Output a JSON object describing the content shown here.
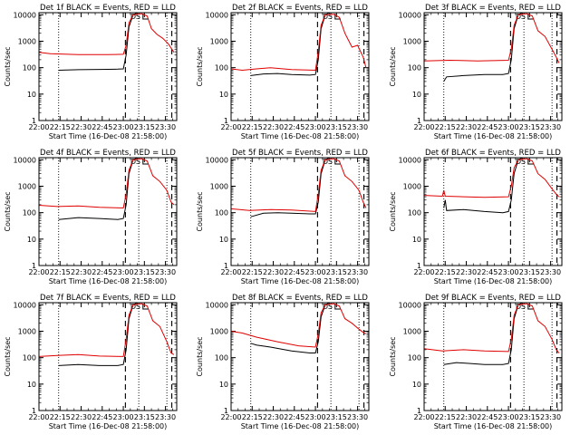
{
  "common": {
    "title_suffix": "BLACK = Events, RED = LLD",
    "ylabel": "Counts/sec",
    "xlabel": "Start Time (16-Dec-08 21:58:00)",
    "y_scale": "log",
    "ylim": [
      1,
      12000
    ],
    "y_ticks": [
      1,
      10,
      100,
      1000,
      10000
    ],
    "y_tick_labels": [
      "1",
      "10",
      "100",
      "1000",
      "10000"
    ],
    "x_unit": "minutes after 21:58:00",
    "xlim": [
      2,
      100
    ],
    "x_ticks": [
      2,
      17,
      32,
      47,
      62,
      77,
      92
    ],
    "x_tick_labels": [
      "22:00",
      "22:15",
      "22:30",
      "22:45",
      "23:00",
      "23:15",
      "23:30"
    ],
    "dotted_markers": [
      16,
      73,
      93
    ],
    "dashed_markers": [
      63.5,
      96.5
    ],
    "top_markers": [
      "D",
      "S"
    ],
    "colors": {
      "events": "#000000",
      "lld": "#e00000",
      "axis": "#000000"
    }
  },
  "chart_data": [
    {
      "type": "line",
      "title": "Det 1f",
      "series": [
        {
          "name": "Events",
          "points": [
            [
              16,
              80
            ],
            [
              30,
              84
            ],
            [
              45,
              86
            ],
            [
              58,
              88
            ],
            [
              62,
              90
            ],
            [
              64,
              300
            ],
            [
              66,
              3500
            ],
            [
              69,
              10000
            ],
            [
              72,
              12000
            ]
          ]
        },
        {
          "name": "LLD",
          "points": [
            [
              2,
              380
            ],
            [
              10,
              340
            ],
            [
              30,
              310
            ],
            [
              50,
              310
            ],
            [
              62,
              320
            ],
            [
              64,
              700
            ],
            [
              66,
              5000
            ],
            [
              69,
              10000
            ],
            [
              75,
              11000
            ],
            [
              79,
              9000
            ],
            [
              82,
              3000
            ],
            [
              86,
              1800
            ],
            [
              90,
              1300
            ],
            [
              94,
              800
            ],
            [
              98,
              380
            ]
          ]
        }
      ]
    },
    {
      "type": "line",
      "title": "Det 2f",
      "series": [
        {
          "name": "Events",
          "points": [
            [
              16,
              50
            ],
            [
              25,
              58
            ],
            [
              35,
              60
            ],
            [
              45,
              55
            ],
            [
              58,
              52
            ],
            [
              62,
              55
            ],
            [
              64,
              200
            ],
            [
              66,
              3000
            ],
            [
              69,
              10000
            ],
            [
              72,
              12000
            ]
          ]
        },
        {
          "name": "LLD",
          "points": [
            [
              2,
              90
            ],
            [
              10,
              80
            ],
            [
              20,
              90
            ],
            [
              30,
              100
            ],
            [
              45,
              85
            ],
            [
              62,
              80
            ],
            [
              64,
              400
            ],
            [
              66,
              4000
            ],
            [
              69,
              10000
            ],
            [
              75,
              10500
            ],
            [
              79,
              8000
            ],
            [
              83,
              2000
            ],
            [
              88,
              600
            ],
            [
              92,
              700
            ],
            [
              96,
              250
            ],
            [
              98,
              100
            ]
          ]
        }
      ]
    },
    {
      "type": "line",
      "title": "Det 3f",
      "series": [
        {
          "name": "Events",
          "points": [
            [
              16,
              30
            ],
            [
              18,
              45
            ],
            [
              30,
              50
            ],
            [
              45,
              55
            ],
            [
              58,
              55
            ],
            [
              62,
              60
            ],
            [
              64,
              200
            ],
            [
              66,
              3000
            ],
            [
              69,
              10000
            ],
            [
              72,
              12000
            ]
          ]
        },
        {
          "name": "LLD",
          "points": [
            [
              2,
              180
            ],
            [
              20,
              190
            ],
            [
              40,
              180
            ],
            [
              62,
              190
            ],
            [
              64,
              500
            ],
            [
              66,
              4000
            ],
            [
              69,
              10000
            ],
            [
              75,
              11000
            ],
            [
              79,
              9000
            ],
            [
              83,
              2500
            ],
            [
              88,
              1500
            ],
            [
              93,
              500
            ],
            [
              96,
              250
            ],
            [
              98,
              150
            ]
          ]
        }
      ]
    },
    {
      "type": "line",
      "title": "Det 4f",
      "series": [
        {
          "name": "Events",
          "points": [
            [
              16,
              55
            ],
            [
              30,
              65
            ],
            [
              45,
              60
            ],
            [
              58,
              55
            ],
            [
              62,
              60
            ],
            [
              64,
              200
            ],
            [
              66,
              3000
            ],
            [
              69,
              10000
            ],
            [
              72,
              12000
            ]
          ]
        },
        {
          "name": "LLD",
          "points": [
            [
              2,
              190
            ],
            [
              15,
              170
            ],
            [
              30,
              180
            ],
            [
              45,
              160
            ],
            [
              62,
              150
            ],
            [
              64,
              500
            ],
            [
              66,
              4000
            ],
            [
              69,
              10000
            ],
            [
              75,
              11000
            ],
            [
              79,
              9000
            ],
            [
              83,
              2500
            ],
            [
              88,
              1500
            ],
            [
              93,
              700
            ],
            [
              96,
              250
            ],
            [
              98,
              200
            ]
          ]
        }
      ]
    },
    {
      "type": "line",
      "title": "Det 5f",
      "series": [
        {
          "name": "Events",
          "points": [
            [
              16,
              70
            ],
            [
              25,
              95
            ],
            [
              35,
              100
            ],
            [
              45,
              95
            ],
            [
              58,
              90
            ],
            [
              62,
              90
            ],
            [
              64,
              250
            ],
            [
              66,
              3000
            ],
            [
              69,
              10000
            ],
            [
              72,
              12000
            ]
          ]
        },
        {
          "name": "LLD",
          "points": [
            [
              2,
              140
            ],
            [
              15,
              120
            ],
            [
              30,
              130
            ],
            [
              45,
              125
            ],
            [
              62,
              110
            ],
            [
              64,
              500
            ],
            [
              66,
              4000
            ],
            [
              69,
              10000
            ],
            [
              75,
              11000
            ],
            [
              79,
              9000
            ],
            [
              83,
              2500
            ],
            [
              88,
              1500
            ],
            [
              93,
              700
            ],
            [
              96,
              250
            ],
            [
              98,
              150
            ]
          ]
        }
      ]
    },
    {
      "type": "line",
      "title": "Det 6f",
      "series": [
        {
          "name": "Events",
          "points": [
            [
              16,
              150
            ],
            [
              17,
              300
            ],
            [
              18,
              120
            ],
            [
              30,
              130
            ],
            [
              45,
              110
            ],
            [
              58,
              100
            ],
            [
              62,
              110
            ],
            [
              64,
              300
            ],
            [
              66,
              3000
            ],
            [
              69,
              10000
            ],
            [
              72,
              12000
            ]
          ]
        },
        {
          "name": "LLD",
          "points": [
            [
              2,
              450
            ],
            [
              15,
              420
            ],
            [
              16,
              700
            ],
            [
              17,
              420
            ],
            [
              30,
              400
            ],
            [
              45,
              380
            ],
            [
              62,
              400
            ],
            [
              64,
              1000
            ],
            [
              66,
              5000
            ],
            [
              69,
              10000
            ],
            [
              75,
              11000
            ],
            [
              79,
              9000
            ],
            [
              83,
              3000
            ],
            [
              88,
              1800
            ],
            [
              93,
              800
            ],
            [
              96,
              500
            ],
            [
              98,
              400
            ]
          ]
        }
      ]
    },
    {
      "type": "line",
      "title": "Det 7f",
      "series": [
        {
          "name": "Events",
          "points": [
            [
              16,
              50
            ],
            [
              30,
              55
            ],
            [
              45,
              50
            ],
            [
              58,
              50
            ],
            [
              62,
              55
            ],
            [
              64,
              200
            ],
            [
              66,
              3000
            ],
            [
              69,
              10000
            ],
            [
              72,
              12000
            ]
          ]
        },
        {
          "name": "LLD",
          "points": [
            [
              2,
              110
            ],
            [
              15,
              120
            ],
            [
              30,
              130
            ],
            [
              45,
              115
            ],
            [
              62,
              110
            ],
            [
              64,
              500
            ],
            [
              66,
              4000
            ],
            [
              69,
              10000
            ],
            [
              75,
              11000
            ],
            [
              79,
              9000
            ],
            [
              83,
              2500
            ],
            [
              88,
              1500
            ],
            [
              93,
              400
            ],
            [
              96,
              150
            ],
            [
              98,
              130
            ]
          ]
        }
      ]
    },
    {
      "type": "line",
      "title": "Det 8f",
      "series": [
        {
          "name": "Events",
          "points": [
            [
              16,
              350
            ],
            [
              20,
              300
            ],
            [
              30,
              250
            ],
            [
              45,
              180
            ],
            [
              58,
              150
            ],
            [
              62,
              150
            ],
            [
              64,
              400
            ],
            [
              66,
              3500
            ],
            [
              69,
              10000
            ],
            [
              72,
              12000
            ]
          ]
        },
        {
          "name": "LLD",
          "points": [
            [
              2,
              1000
            ],
            [
              10,
              850
            ],
            [
              20,
              600
            ],
            [
              35,
              400
            ],
            [
              50,
              280
            ],
            [
              62,
              250
            ],
            [
              64,
              800
            ],
            [
              66,
              5000
            ],
            [
              69,
              10000
            ],
            [
              75,
              11000
            ],
            [
              79,
              9000
            ],
            [
              83,
              3000
            ],
            [
              88,
              2000
            ],
            [
              93,
              1200
            ],
            [
              96,
              900
            ],
            [
              98,
              800
            ]
          ]
        }
      ]
    },
    {
      "type": "line",
      "title": "Det 9f",
      "series": [
        {
          "name": "Events",
          "points": [
            [
              16,
              55
            ],
            [
              25,
              65
            ],
            [
              35,
              60
            ],
            [
              45,
              55
            ],
            [
              58,
              55
            ],
            [
              62,
              60
            ],
            [
              64,
              200
            ],
            [
              66,
              3000
            ],
            [
              69,
              10000
            ],
            [
              72,
              12000
            ]
          ]
        },
        {
          "name": "LLD",
          "points": [
            [
              2,
              220
            ],
            [
              15,
              180
            ],
            [
              30,
              200
            ],
            [
              45,
              180
            ],
            [
              62,
              170
            ],
            [
              64,
              500
            ],
            [
              66,
              4000
            ],
            [
              69,
              10000
            ],
            [
              75,
              11000
            ],
            [
              79,
              9000
            ],
            [
              83,
              2500
            ],
            [
              88,
              1500
            ],
            [
              93,
              500
            ],
            [
              96,
              200
            ],
            [
              98,
              150
            ]
          ]
        }
      ]
    }
  ]
}
